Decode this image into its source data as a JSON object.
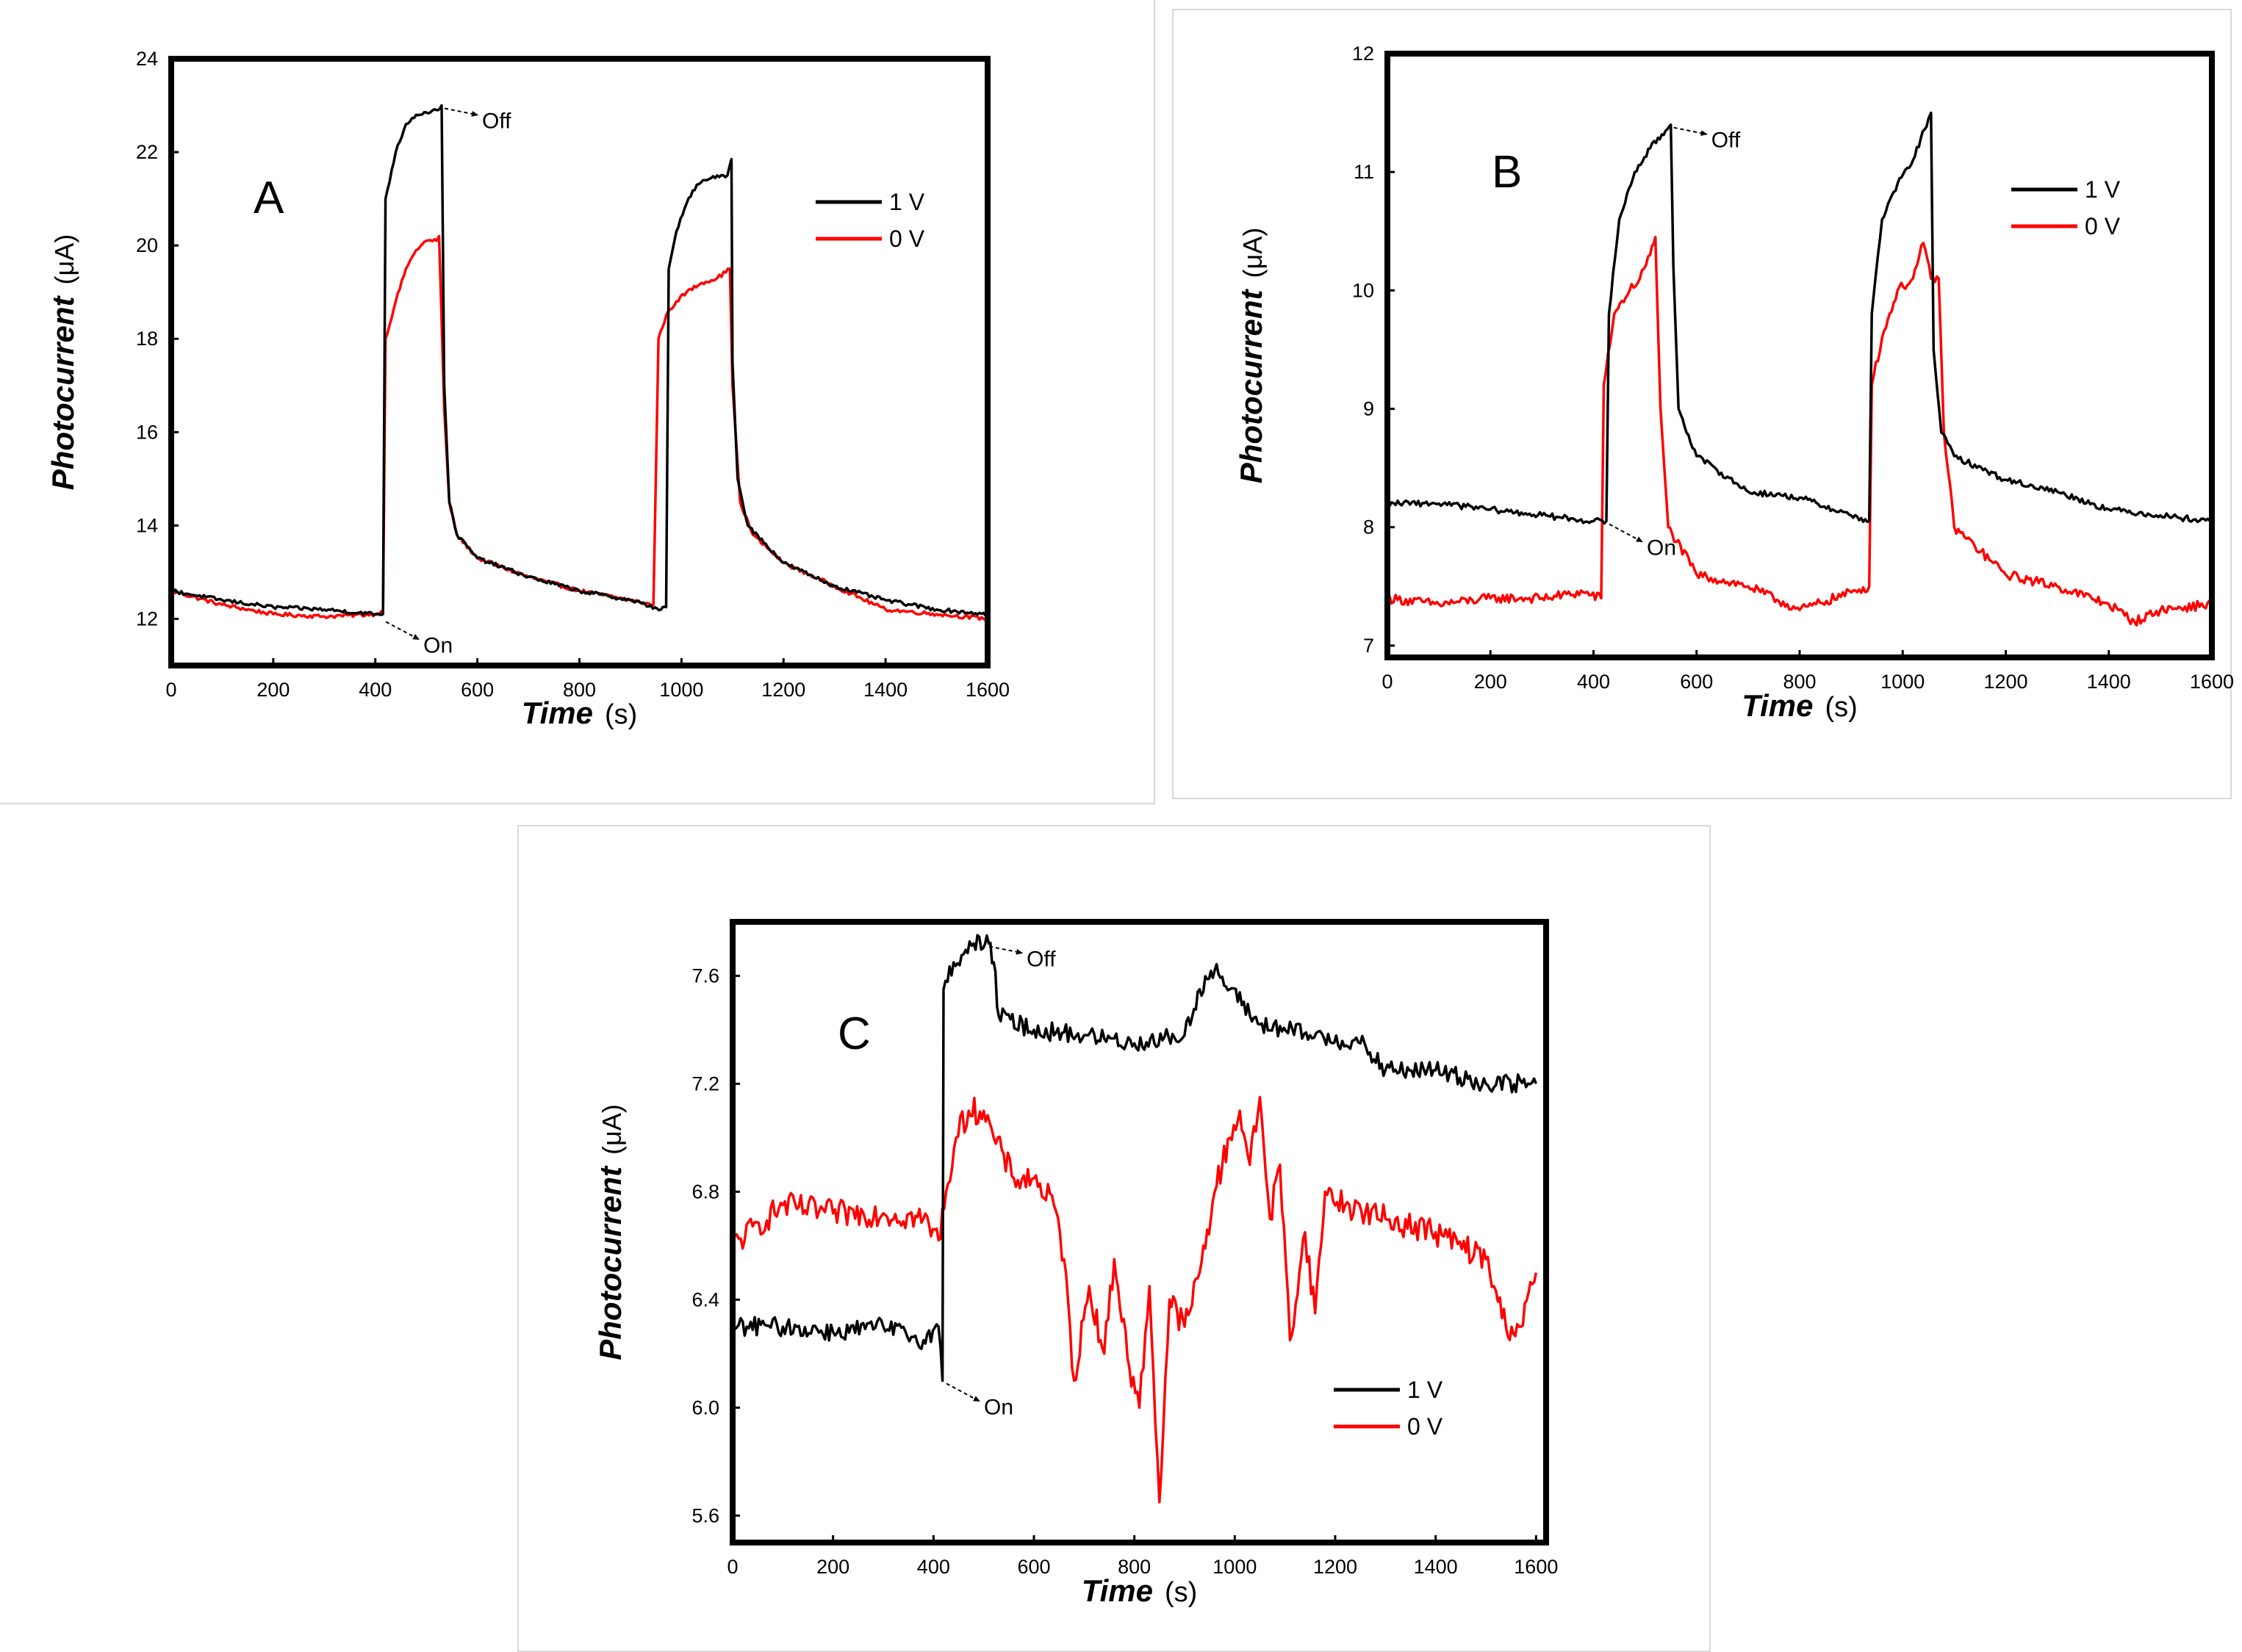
{
  "panel_texts": {
    "annotation_on": "On",
    "annotation_off": "Off"
  },
  "colors": {
    "series_1v": "#000000",
    "series_0v": "#ff0000"
  },
  "chart_data": [
    {
      "type": "line",
      "panel_label": "A",
      "xlabel": "Time",
      "xunit": "(s)",
      "ylabel": "Photocurrent",
      "yunit": "(μA)",
      "xlim": [
        0,
        1600
      ],
      "ylim": [
        11,
        24
      ],
      "xticks": [
        0,
        200,
        400,
        600,
        800,
        1000,
        1200,
        1400,
        1600
      ],
      "yticks": [
        12,
        14,
        16,
        18,
        20,
        22,
        24
      ],
      "annotations": [
        {
          "text": "Off",
          "x": 530,
          "y": 23.0
        },
        {
          "text": "On",
          "x": 415,
          "y": 12.0
        }
      ],
      "legend": [
        {
          "label": "1 V",
          "color": "#000000"
        },
        {
          "label": "0 V",
          "color": "#ff0000"
        }
      ],
      "series": [
        {
          "name": "1 V",
          "color": "#000000",
          "noise": 0.04,
          "points": [
            [
              0,
              12.6
            ],
            [
              100,
              12.4
            ],
            [
              200,
              12.25
            ],
            [
              300,
              12.2
            ],
            [
              400,
              12.1
            ],
            [
              415,
              12.1
            ],
            [
              420,
              21.0
            ],
            [
              440,
              22.0
            ],
            [
              460,
              22.6
            ],
            [
              480,
              22.8
            ],
            [
              500,
              22.85
            ],
            [
              520,
              22.9
            ],
            [
              530,
              23.0
            ],
            [
              535,
              17.0
            ],
            [
              545,
              14.5
            ],
            [
              560,
              13.8
            ],
            [
              600,
              13.3
            ],
            [
              700,
              12.9
            ],
            [
              800,
              12.6
            ],
            [
              900,
              12.4
            ],
            [
              960,
              12.2
            ],
            [
              970,
              12.25
            ],
            [
              975,
              19.5
            ],
            [
              990,
              20.3
            ],
            [
              1010,
              20.9
            ],
            [
              1030,
              21.3
            ],
            [
              1050,
              21.4
            ],
            [
              1070,
              21.5
            ],
            [
              1090,
              21.5
            ],
            [
              1098,
              21.85
            ],
            [
              1100,
              17.5
            ],
            [
              1110,
              15.0
            ],
            [
              1130,
              14.0
            ],
            [
              1200,
              13.2
            ],
            [
              1300,
              12.7
            ],
            [
              1400,
              12.4
            ],
            [
              1500,
              12.2
            ],
            [
              1600,
              12.1
            ]
          ]
        },
        {
          "name": "0 V",
          "color": "#ff0000",
          "noise": 0.04,
          "points": [
            [
              0,
              12.6
            ],
            [
              100,
              12.3
            ],
            [
              200,
              12.1
            ],
            [
              300,
              12.05
            ],
            [
              400,
              12.1
            ],
            [
              415,
              12.15
            ],
            [
              420,
              18.0
            ],
            [
              440,
              18.8
            ],
            [
              460,
              19.5
            ],
            [
              480,
              19.9
            ],
            [
              500,
              20.1
            ],
            [
              520,
              20.1
            ],
            [
              525,
              20.2
            ],
            [
              535,
              16.5
            ],
            [
              545,
              14.5
            ],
            [
              560,
              13.8
            ],
            [
              600,
              13.3
            ],
            [
              700,
              12.9
            ],
            [
              800,
              12.6
            ],
            [
              900,
              12.4
            ],
            [
              945,
              12.3
            ],
            [
              955,
              18.0
            ],
            [
              970,
              18.5
            ],
            [
              990,
              18.8
            ],
            [
              1010,
              19.0
            ],
            [
              1040,
              19.2
            ],
            [
              1070,
              19.3
            ],
            [
              1095,
              19.5
            ],
            [
              1100,
              17.0
            ],
            [
              1115,
              14.5
            ],
            [
              1140,
              13.8
            ],
            [
              1200,
              13.2
            ],
            [
              1300,
              12.7
            ],
            [
              1400,
              12.2
            ],
            [
              1500,
              12.1
            ],
            [
              1600,
              12.0
            ]
          ]
        }
      ]
    },
    {
      "type": "line",
      "panel_label": "B",
      "xlabel": "Time",
      "xunit": "(s)",
      "ylabel": "Photocurrent",
      "yunit": "(μA)",
      "xlim": [
        0,
        1600
      ],
      "ylim": [
        6.9,
        12
      ],
      "xticks": [
        0,
        200,
        400,
        600,
        800,
        1000,
        1200,
        1400,
        1600
      ],
      "yticks": [
        7,
        8,
        9,
        10,
        11,
        12
      ],
      "annotations": [
        {
          "text": "Off",
          "x": 550,
          "y": 11.4
        },
        {
          "text": "On",
          "x": 425,
          "y": 8.05
        }
      ],
      "legend": [
        {
          "label": "1 V",
          "color": "#000000"
        },
        {
          "label": "0 V",
          "color": "#ff0000"
        }
      ],
      "series": [
        {
          "name": "1 V",
          "color": "#000000",
          "noise": 0.025,
          "points": [
            [
              0,
              8.2
            ],
            [
              100,
              8.2
            ],
            [
              200,
              8.15
            ],
            [
              300,
              8.1
            ],
            [
              400,
              8.05
            ],
            [
              425,
              8.05
            ],
            [
              430,
              9.8
            ],
            [
              450,
              10.6
            ],
            [
              480,
              11.0
            ],
            [
              510,
              11.2
            ],
            [
              540,
              11.35
            ],
            [
              550,
              11.4
            ],
            [
              555,
              10.2
            ],
            [
              565,
              9.0
            ],
            [
              600,
              8.6
            ],
            [
              700,
              8.3
            ],
            [
              800,
              8.25
            ],
            [
              900,
              8.1
            ],
            [
              935,
              8.05
            ],
            [
              940,
              9.8
            ],
            [
              960,
              10.6
            ],
            [
              990,
              10.9
            ],
            [
              1020,
              11.1
            ],
            [
              1050,
              11.45
            ],
            [
              1055,
              11.5
            ],
            [
              1060,
              9.5
            ],
            [
              1075,
              8.8
            ],
            [
              1100,
              8.6
            ],
            [
              1200,
              8.4
            ],
            [
              1300,
              8.3
            ],
            [
              1400,
              8.15
            ],
            [
              1500,
              8.1
            ],
            [
              1600,
              8.05
            ]
          ]
        },
        {
          "name": "0 V",
          "color": "#ff0000",
          "noise": 0.04,
          "points": [
            [
              0,
              7.4
            ],
            [
              100,
              7.35
            ],
            [
              200,
              7.4
            ],
            [
              300,
              7.4
            ],
            [
              380,
              7.45
            ],
            [
              415,
              7.4
            ],
            [
              420,
              9.2
            ],
            [
              440,
              9.8
            ],
            [
              470,
              10.0
            ],
            [
              490,
              10.1
            ],
            [
              510,
              10.3
            ],
            [
              520,
              10.45
            ],
            [
              530,
              9.0
            ],
            [
              545,
              8.0
            ],
            [
              600,
              7.6
            ],
            [
              700,
              7.5
            ],
            [
              800,
              7.3
            ],
            [
              900,
              7.45
            ],
            [
              935,
              7.5
            ],
            [
              940,
              9.2
            ],
            [
              960,
              9.6
            ],
            [
              990,
              10.0
            ],
            [
              1020,
              10.1
            ],
            [
              1040,
              10.4
            ],
            [
              1055,
              10.1
            ],
            [
              1070,
              10.1
            ],
            [
              1080,
              8.8
            ],
            [
              1100,
              8.0
            ],
            [
              1200,
              7.6
            ],
            [
              1300,
              7.5
            ],
            [
              1400,
              7.35
            ],
            [
              1450,
              7.2
            ],
            [
              1500,
              7.3
            ],
            [
              1600,
              7.35
            ]
          ]
        }
      ]
    },
    {
      "type": "line",
      "panel_label": "C",
      "xlabel": "Time",
      "xunit": "(s)",
      "ylabel": "Photocurrent",
      "yunit": "(μA)",
      "xlim": [
        0,
        1620
      ],
      "ylim": [
        5.5,
        7.8
      ],
      "xticks": [
        0,
        200,
        400,
        600,
        800,
        1000,
        1200,
        1400,
        1600
      ],
      "yticks": [
        5.6,
        6.0,
        6.4,
        6.8,
        7.2,
        7.6
      ],
      "annotations": [
        {
          "text": "Off",
          "x": 505,
          "y": 7.72
        },
        {
          "text": "On",
          "x": 420,
          "y": 6.1
        }
      ],
      "legend": [
        {
          "label": "1 V",
          "color": "#000000"
        },
        {
          "label": "0 V",
          "color": "#ff0000"
        }
      ],
      "series": [
        {
          "name": "1 V",
          "color": "#000000",
          "noise": 0.035,
          "points": [
            [
              0,
              6.3
            ],
            [
              100,
              6.3
            ],
            [
              200,
              6.28
            ],
            [
              300,
              6.3
            ],
            [
              380,
              6.25
            ],
            [
              410,
              6.3
            ],
            [
              418,
              6.1
            ],
            [
              420,
              7.55
            ],
            [
              440,
              7.65
            ],
            [
              460,
              7.68
            ],
            [
              480,
              7.72
            ],
            [
              510,
              7.72
            ],
            [
              520,
              7.65
            ],
            [
              530,
              7.45
            ],
            [
              600,
              7.4
            ],
            [
              700,
              7.38
            ],
            [
              800,
              7.35
            ],
            [
              900,
              7.38
            ],
            [
              930,
              7.55
            ],
            [
              960,
              7.62
            ],
            [
              990,
              7.55
            ],
            [
              1050,
              7.42
            ],
            [
              1150,
              7.38
            ],
            [
              1250,
              7.35
            ],
            [
              1300,
              7.25
            ],
            [
              1400,
              7.25
            ],
            [
              1500,
              7.2
            ],
            [
              1600,
              7.2
            ]
          ]
        },
        {
          "name": "0 V",
          "color": "#ff0000",
          "noise": 0.05,
          "points": [
            [
              0,
              6.6
            ],
            [
              100,
              6.75
            ],
            [
              200,
              6.72
            ],
            [
              300,
              6.72
            ],
            [
              380,
              6.7
            ],
            [
              410,
              6.62
            ],
            [
              425,
              6.8
            ],
            [
              445,
              7.0
            ],
            [
              470,
              7.1
            ],
            [
              500,
              7.1
            ],
            [
              520,
              7.0
            ],
            [
              560,
              6.85
            ],
            [
              600,
              6.85
            ],
            [
              640,
              6.75
            ],
            [
              660,
              6.55
            ],
            [
              680,
              6.1
            ],
            [
              710,
              6.45
            ],
            [
              740,
              6.2
            ],
            [
              760,
              6.55
            ],
            [
              790,
              6.15
            ],
            [
              810,
              6.0
            ],
            [
              830,
              6.45
            ],
            [
              850,
              5.65
            ],
            [
              870,
              6.4
            ],
            [
              900,
              6.3
            ],
            [
              930,
              6.5
            ],
            [
              960,
              6.8
            ],
            [
              990,
              7.0
            ],
            [
              1010,
              7.1
            ],
            [
              1030,
              6.9
            ],
            [
              1050,
              7.15
            ],
            [
              1070,
              6.7
            ],
            [
              1090,
              6.9
            ],
            [
              1110,
              6.25
            ],
            [
              1140,
              6.65
            ],
            [
              1160,
              6.35
            ],
            [
              1180,
              6.8
            ],
            [
              1220,
              6.75
            ],
            [
              1300,
              6.7
            ],
            [
              1400,
              6.65
            ],
            [
              1500,
              6.55
            ],
            [
              1540,
              6.3
            ],
            [
              1570,
              6.3
            ],
            [
              1600,
              6.5
            ]
          ]
        }
      ]
    }
  ]
}
